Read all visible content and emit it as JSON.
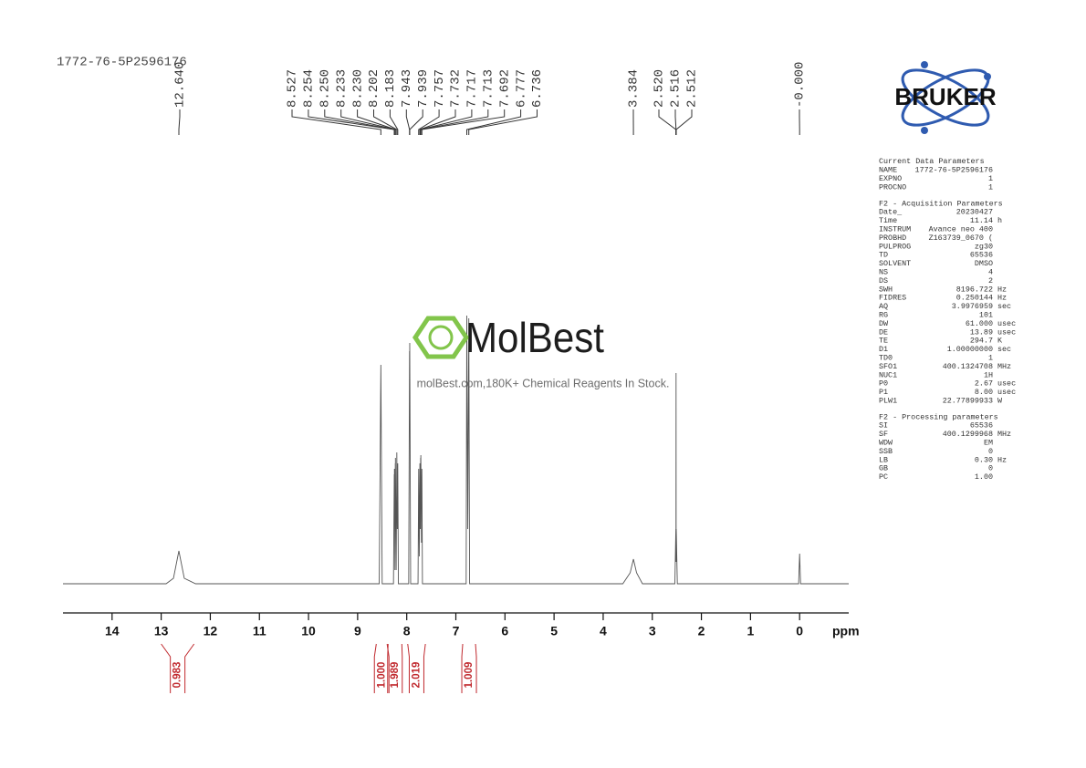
{
  "chart_data": {
    "type": "nmr",
    "title": "1772-76-5P2596176",
    "x_label": "ppm",
    "xlim": [
      15,
      -1
    ],
    "ylim": [
      0,
      100
    ],
    "xticks": [
      14,
      13,
      12,
      11,
      10,
      9,
      8,
      7,
      6,
      5,
      4,
      3,
      2,
      1,
      0
    ],
    "color": "#555555",
    "x": [
      15,
      12.9,
      12.75,
      12.64,
      12.53,
      12.3,
      8.56,
      8.527,
      8.5,
      8.27,
      8.254,
      8.252,
      8.25,
      8.24,
      8.233,
      8.231,
      8.23,
      8.215,
      8.202,
      8.192,
      8.183,
      8.17,
      7.96,
      7.943,
      7.941,
      7.939,
      7.92,
      7.77,
      7.757,
      7.745,
      7.732,
      7.724,
      7.717,
      7.715,
      7.713,
      7.7,
      7.692,
      7.68,
      6.79,
      6.777,
      6.757,
      6.736,
      6.72,
      3.6,
      3.45,
      3.384,
      3.32,
      3.2,
      2.54,
      2.52,
      2.518,
      2.516,
      2.514,
      2.512,
      2.49,
      0.02,
      0,
      -0.02,
      -1
    ],
    "values": [
      0,
      0,
      2,
      12,
      2,
      0,
      0,
      80,
      0,
      0,
      40,
      30,
      42,
      5,
      44,
      35,
      46,
      5,
      48,
      20,
      44,
      0,
      0,
      85,
      60,
      88,
      0,
      0,
      42,
      10,
      44,
      20,
      46,
      40,
      47,
      15,
      42,
      0,
      0,
      98,
      20,
      97,
      0,
      0,
      4,
      9,
      4,
      0,
      0,
      20,
      8,
      77,
      8,
      20,
      0,
      0,
      11,
      0,
      0
    ],
    "peaks": [
      {
        "value": 12.64,
        "label": "12.640"
      },
      8.527,
      8.254,
      {
        "value": 8.25,
        "label": "8.250"
      },
      8.233,
      {
        "value": 8.23,
        "label": "8.230"
      },
      8.202,
      8.183,
      7.943,
      7.939,
      7.757,
      7.732,
      7.717,
      7.713,
      7.692,
      6.777,
      6.736,
      3.384,
      {
        "value": 2.52,
        "label": "2.520"
      },
      2.516,
      2.512,
      {
        "value": 0,
        "label": "-0.000"
      }
    ],
    "integrals": [
      {
        "range": [
          13.0,
          12.33
        ],
        "value": 0.983,
        "label": "0.983"
      },
      {
        "range": [
          8.62,
          8.4
        ],
        "value": 1,
        "label": "1.000"
      },
      {
        "range": [
          8.38,
          8.1
        ],
        "value": 1.989,
        "label": "1.989"
      },
      {
        "range": [
          7.98,
          7.62
        ],
        "value": 2.019,
        "label": "2.019"
      },
      {
        "range": [
          6.86,
          6.6
        ],
        "value": 1.009,
        "label": "1.009"
      }
    ]
  },
  "watermark": {
    "brand": "MolBest",
    "tagline": "molBest.com,180K+ Chemical Reagents In Stock."
  },
  "logo": "BRUKER",
  "parameters": [
    {
      "heading": "Current Data Parameters",
      "rows": [
        [
          "NAME",
          "1772-76-5P2596176"
        ],
        [
          "EXPNO",
          "1"
        ],
        [
          "PROCNO",
          "1"
        ]
      ]
    },
    {
      "heading": "F2 - Acquisition Parameters",
      "rows": [
        [
          "Date_",
          "20230427"
        ],
        [
          "Time",
          "11.14",
          "h"
        ],
        [
          "INSTRUM",
          "Avance neo 400"
        ],
        [
          "PROBHD",
          "Z163739_0670 ("
        ],
        [
          "PULPROG",
          "zg30"
        ],
        [
          "TD",
          "65536"
        ],
        [
          "SOLVENT",
          "DMSO"
        ],
        [
          "NS",
          "4"
        ],
        [
          "DS",
          "2"
        ],
        [
          "SWH",
          "8196.722",
          "Hz"
        ],
        [
          "FIDRES",
          "0.250144",
          "Hz"
        ],
        [
          "AQ",
          "3.9976959",
          "sec"
        ],
        [
          "RG",
          "101"
        ],
        [
          "DW",
          "61.000",
          "usec"
        ],
        [
          "DE",
          "13.89",
          "usec"
        ],
        [
          "TE",
          "294.7",
          "K"
        ],
        [
          "D1",
          "1.00000000",
          "sec"
        ],
        [
          "TD0",
          "1"
        ],
        [
          "SFO1",
          "400.1324708",
          "MHz"
        ],
        [
          "NUC1",
          "1H"
        ],
        [
          "P0",
          "2.67",
          "usec"
        ],
        [
          "P1",
          "8.00",
          "usec"
        ],
        [
          "PLW1",
          "22.77899933",
          "W"
        ]
      ]
    },
    {
      "heading": "F2 - Processing parameters",
      "rows": [
        [
          "SI",
          "65536"
        ],
        [
          "SF",
          "400.1299968",
          "MHz"
        ],
        [
          "WDW",
          "EM"
        ],
        [
          "SSB",
          "0"
        ],
        [
          "LB",
          "0.30",
          "Hz"
        ],
        [
          "GB",
          "0"
        ],
        [
          "PC",
          "1.00"
        ]
      ]
    }
  ]
}
